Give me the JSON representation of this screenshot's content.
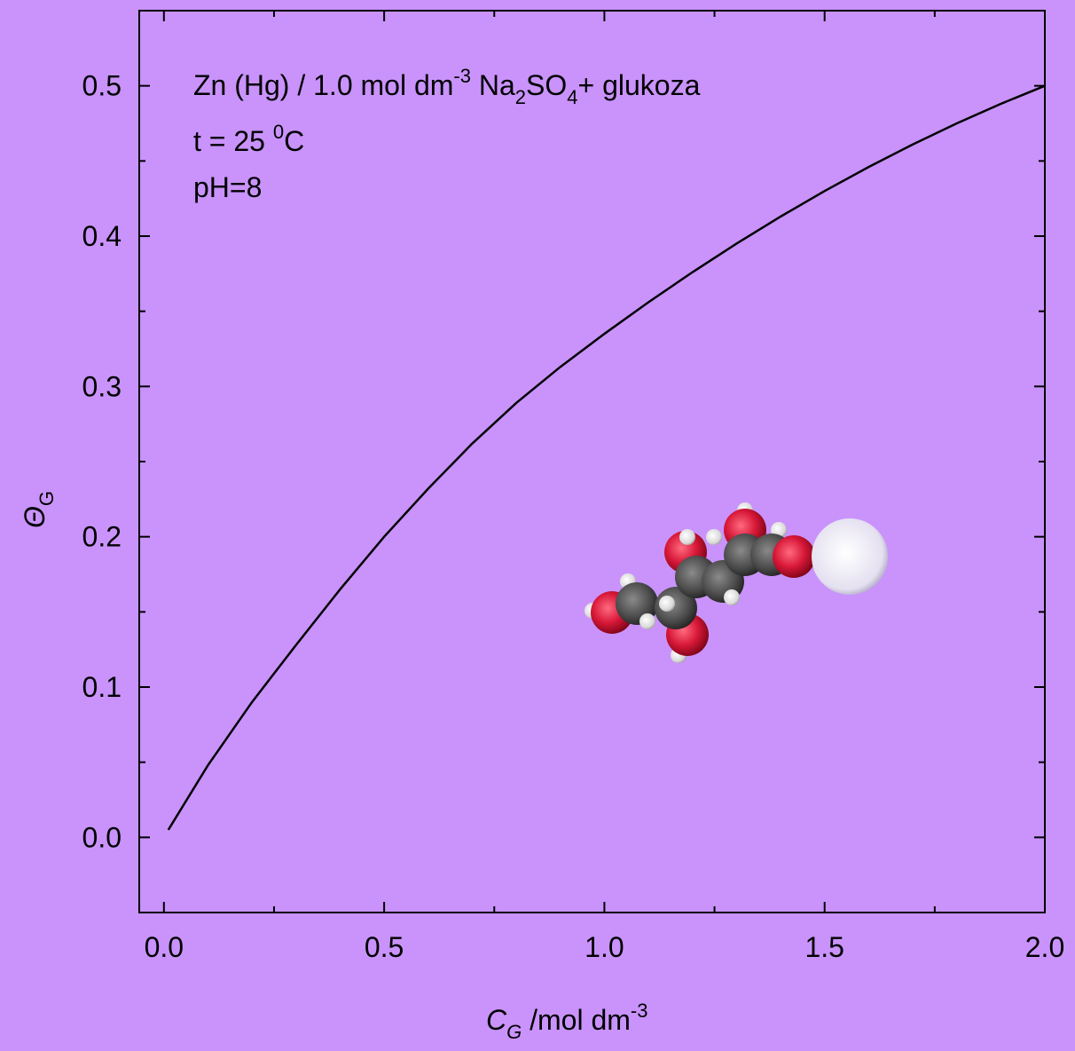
{
  "chart_data": {
    "type": "line",
    "annotations": [
      [
        "Zn (Hg) / 1.0 mol dm",
        "-3",
        " Na",
        "2",
        "SO",
        "4",
        "+ glukoza"
      ],
      [
        "t = 25 ",
        "0",
        "C"
      ],
      [
        "pH=8"
      ]
    ],
    "x_label": [
      "C",
      "G",
      " /mol dm",
      "-3"
    ],
    "y_label": [
      "Θ",
      "G"
    ],
    "x": [
      0.01,
      0.1,
      0.2,
      0.3,
      0.4,
      0.5,
      0.6,
      0.7,
      0.8,
      0.9,
      1.0,
      1.1,
      1.2,
      1.3,
      1.4,
      1.5,
      1.6,
      1.7,
      1.8,
      1.9,
      2.0
    ],
    "values": [
      0.005,
      0.048,
      0.09,
      0.128,
      0.165,
      0.2,
      0.232,
      0.262,
      0.289,
      0.313,
      0.335,
      0.356,
      0.376,
      0.395,
      0.413,
      0.43,
      0.446,
      0.461,
      0.475,
      0.488,
      0.5
    ],
    "color": "#000000",
    "xlim": [
      -0.056,
      2.0
    ],
    "ylim": [
      -0.05,
      0.55
    ],
    "xticks": [
      {
        "value": 0,
        "label": "0.0"
      },
      0.5,
      {
        "value": 1,
        "label": "1.0"
      },
      1.5,
      {
        "value": 2,
        "label": "2.0"
      }
    ],
    "yticks": [
      {
        "value": 0,
        "label": "0.0"
      },
      0.1,
      0.2,
      0.3,
      0.4,
      0.5
    ]
  }
}
